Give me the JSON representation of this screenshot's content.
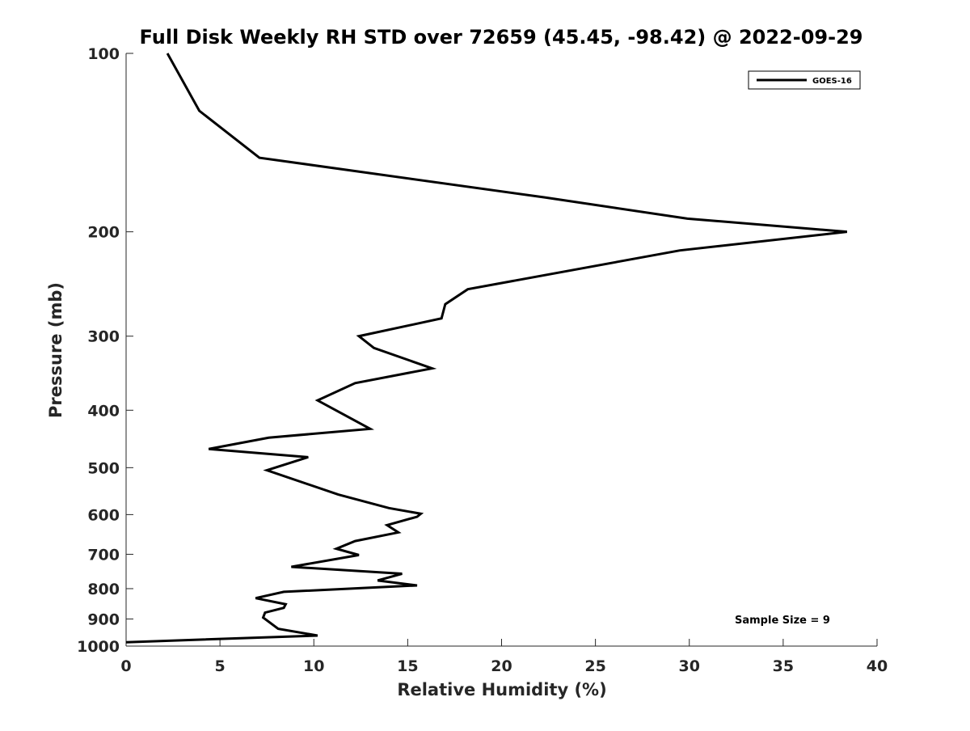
{
  "chart_data": {
    "type": "line",
    "title": "Full Disk Weekly RH STD over 72659 (45.45, -98.42) @ 2022-09-29",
    "xlabel": "Relative Humidity (%)",
    "ylabel": "Pressure (mb)",
    "xlim": [
      0,
      40
    ],
    "ylim": [
      100,
      1000
    ],
    "yscale": "log",
    "y_reversed": true,
    "xticks": [
      0,
      5,
      10,
      15,
      20,
      25,
      30,
      35,
      40
    ],
    "yticks": [
      100,
      200,
      300,
      400,
      500,
      600,
      700,
      800,
      900,
      1000
    ],
    "grid": false,
    "legend_position": "top-right",
    "line_color": "#000000",
    "annotation": "Sample Size = 9",
    "series": [
      {
        "name": "GOES-16",
        "points": [
          [
            2.2,
            100
          ],
          [
            3.9,
            125
          ],
          [
            7.1,
            150
          ],
          [
            22.3,
            175
          ],
          [
            29.9,
            190
          ],
          [
            38.4,
            200
          ],
          [
            29.5,
            215
          ],
          [
            18.2,
            250
          ],
          [
            17.0,
            265
          ],
          [
            16.8,
            280
          ],
          [
            12.4,
            300
          ],
          [
            13.2,
            314
          ],
          [
            16.3,
            340
          ],
          [
            12.2,
            360
          ],
          [
            10.2,
            385
          ],
          [
            13.0,
            430
          ],
          [
            7.6,
            445
          ],
          [
            4.4,
            465
          ],
          [
            9.7,
            480
          ],
          [
            7.5,
            505
          ],
          [
            11.3,
            555
          ],
          [
            14.0,
            585
          ],
          [
            15.7,
            598
          ],
          [
            15.5,
            605
          ],
          [
            13.9,
            625
          ],
          [
            14.5,
            643
          ],
          [
            12.2,
            665
          ],
          [
            11.2,
            685
          ],
          [
            12.4,
            702
          ],
          [
            8.8,
            735
          ],
          [
            14.7,
            755
          ],
          [
            13.4,
            775
          ],
          [
            15.5,
            790
          ],
          [
            8.4,
            810
          ],
          [
            6.9,
            830
          ],
          [
            8.5,
            850
          ],
          [
            8.4,
            862
          ],
          [
            7.4,
            878
          ],
          [
            7.3,
            895
          ],
          [
            8.1,
            935
          ],
          [
            10.2,
            960
          ],
          [
            0.0,
            985
          ]
        ]
      }
    ]
  }
}
